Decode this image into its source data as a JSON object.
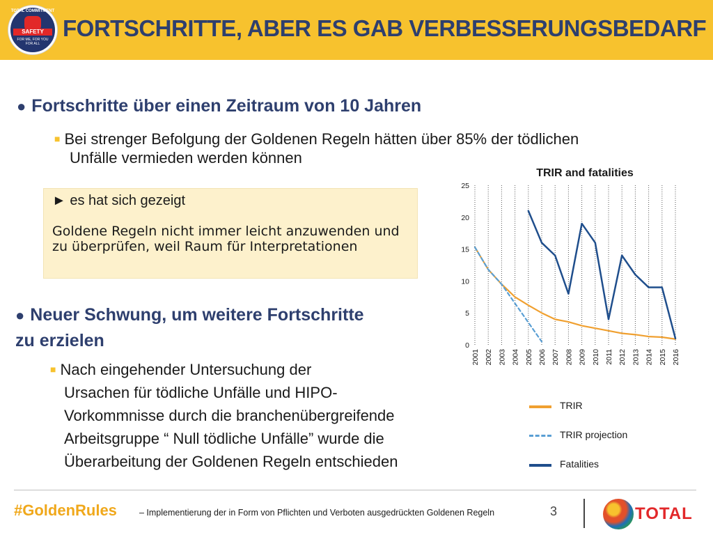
{
  "header": {
    "title": "FORTSCHRITTE,  ABER ES GAB VERBESSERUNGSBEDARF",
    "logo": {
      "ring_top": "TOTAL COMMITMENT",
      "band": "SAFETY",
      "ring_bottom": [
        "FOR ME, FOR YOU",
        "FOR ALL"
      ]
    }
  },
  "content": {
    "bullet1": "Fortschritte über einen Zeitraum von 10 Jahren",
    "sub1_line1": "Bei strenger Befolgung der Goldenen Regeln hätten über 85% der tödlichen",
    "sub1_line2": "Unfälle vermieden werden können",
    "note_head": "► es hat sich gezeigt",
    "note_text": "Goldene Regeln nicht immer leicht anzuwenden und zu überprüfen, weil Raum für Interpretationen",
    "bullet2_line1": "Neuer Schwung, um weitere Fortschritte",
    "bullet2_line2": "zu erzielen",
    "sub2_lines": [
      "Nach eingehender Untersuchung der",
      "Ursachen für tödliche Unfälle und HIPO-",
      "Vorkommnisse durch die branchenübergreifende",
      "Arbeitsgruppe “ Null tödliche Unfälle” wurde die",
      "Überarbeitung der Goldenen Regeln entschieden"
    ]
  },
  "footer": {
    "hashtag": "#GoldenRules",
    "note": "– Implementierung der in Form von Pflichten und Verboten ausgedrückten Goldenen Regeln",
    "page": "3",
    "brand": "TOTAL"
  },
  "chart_data": {
    "type": "line",
    "title": "TRIR and fatalities",
    "categories": [
      "2001",
      "2002",
      "2003",
      "2004",
      "2005",
      "2006",
      "2007",
      "2008",
      "2009",
      "2010",
      "2011",
      "2012",
      "2013",
      "2014",
      "2015",
      "2016"
    ],
    "ylim": [
      0,
      25
    ],
    "yticks": [
      0,
      5,
      10,
      15,
      20,
      25
    ],
    "grid": "vertical dotted",
    "legend_position": "bottom-right",
    "series": [
      {
        "name": "TRIR",
        "color": "#f0a030",
        "style": "solid",
        "values": [
          15.3,
          11.8,
          9.5,
          7.5,
          6.2,
          5.0,
          4.0,
          3.6,
          3.0,
          2.6,
          2.2,
          1.8,
          1.6,
          1.3,
          1.2,
          0.9
        ]
      },
      {
        "name": "TRIR projection",
        "color": "#5a9fd4",
        "style": "dashed",
        "values": [
          15.3,
          11.8,
          9.5,
          6.5,
          3.5,
          0.5,
          null,
          null,
          null,
          null,
          null,
          null,
          null,
          null,
          null,
          null
        ]
      },
      {
        "name": "Fatalities",
        "color": "#1f4e8c",
        "style": "solid",
        "values": [
          null,
          null,
          null,
          null,
          21,
          16,
          14,
          8,
          19,
          16,
          4,
          14,
          11,
          9,
          9,
          1
        ]
      }
    ]
  }
}
